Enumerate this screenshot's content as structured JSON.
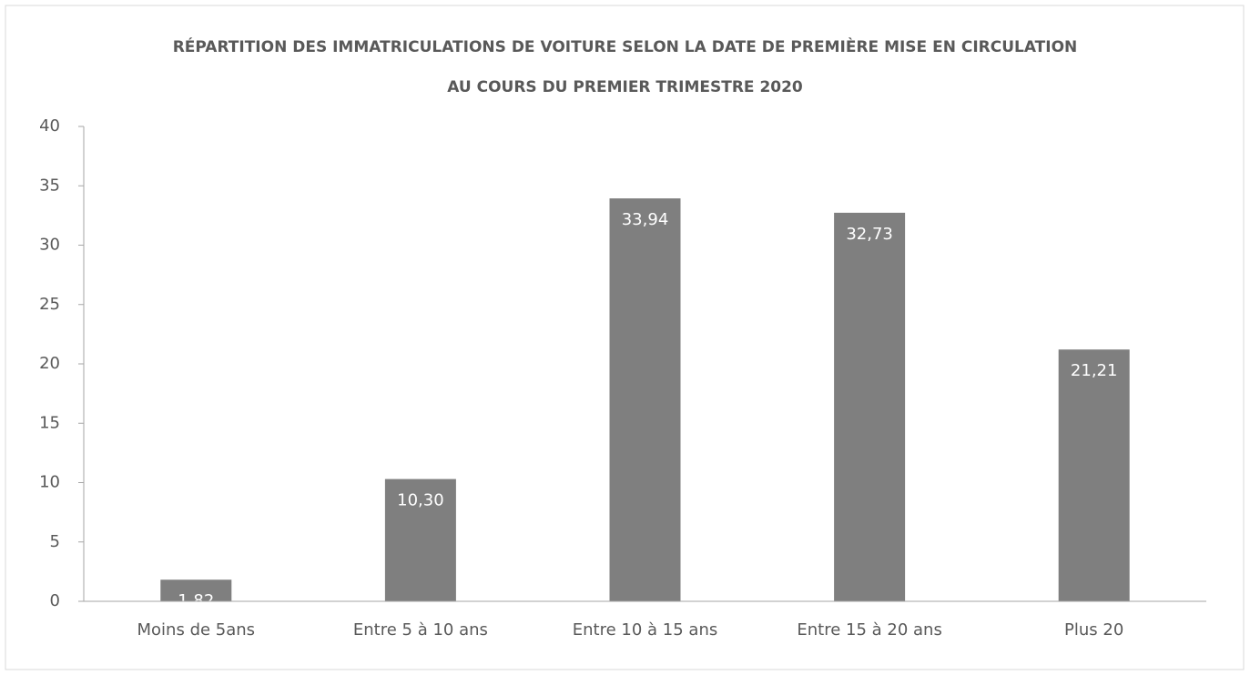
{
  "chart_data": {
    "type": "bar",
    "title": "RÉPARTITION DES IMMATRICULATIONS DE VOITURE SELON LA DATE DE PREMIÈRE MISE EN CIRCULATION AU COURS DU PREMIER TRIMESTRE 2020",
    "categories": [
      "Moins de 5ans",
      "Entre 5 à 10 ans",
      "Entre 10 à 15 ans",
      "Entre 15 à 20 ans",
      "Plus 20"
    ],
    "values": [
      1.82,
      10.3,
      33.94,
      32.73,
      21.21
    ],
    "value_labels": [
      "1,82",
      "10,30",
      "33,94",
      "32,73",
      "21,21"
    ],
    "color": "#7f7f7f",
    "ylim": [
      0,
      40
    ],
    "yticks": [
      0,
      5,
      10,
      15,
      20,
      25,
      30,
      35,
      40
    ],
    "grid": false
  }
}
